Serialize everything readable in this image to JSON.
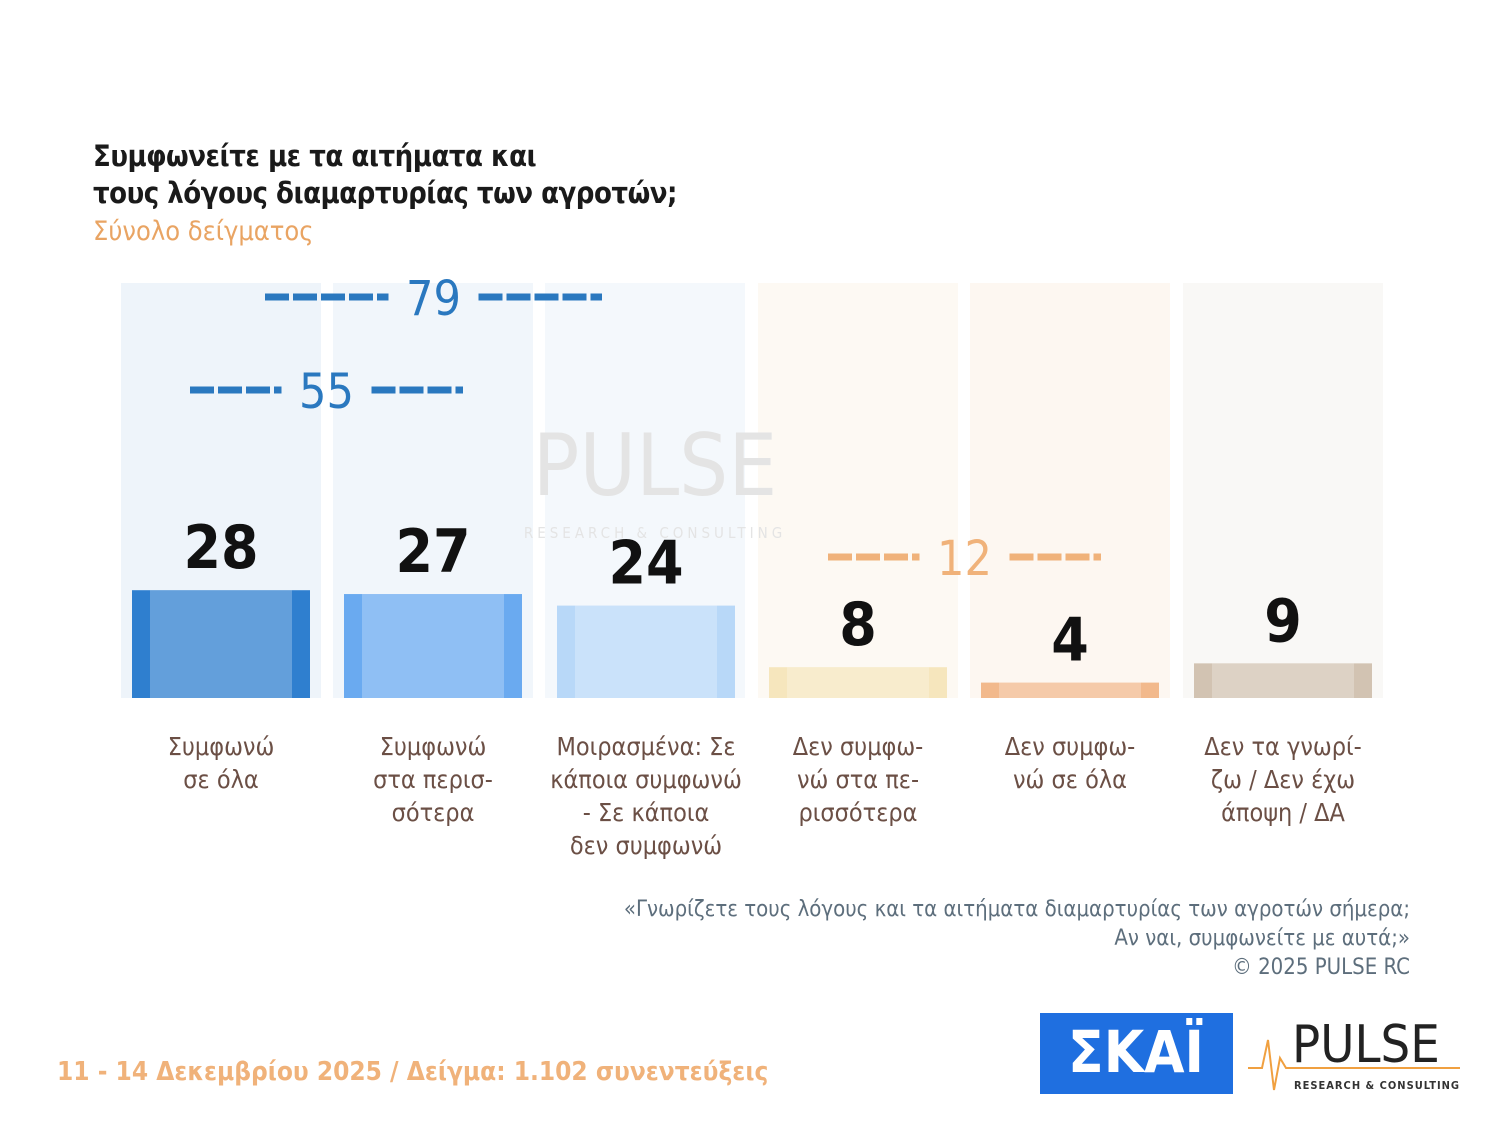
{
  "chart_data": {
    "type": "bar",
    "title": "Συμφωνείτε με τα αιτήματα και\nτους λόγους διαμαρτυρίας των αγροτών;",
    "subtitle": "Σύνολο δείγματος",
    "categories": [
      "Συμφωνώ\nσε όλα",
      "Συμφωνώ\nστα περισ-\nσότερα",
      "Μοιρασμένα: Σε\nκάποια συμφωνώ\n- Σε κάποια\nδεν συμφωνώ",
      "Δεν συμφω-\nνώ στα πε-\nρισσότερα",
      "Δεν συμφω-\nνώ σε όλα",
      "Δεν τα γνωρί-\nζω / Δεν έχω\nάποψη / ΔΑ"
    ],
    "values": [
      28,
      27,
      24,
      8,
      4,
      9
    ],
    "colors": [
      "#2f7fcf",
      "#6aaaf0",
      "#b8d8f8",
      "#f6e6bd",
      "#f2b98c",
      "#d2c3b2"
    ],
    "groups": [
      {
        "value": 79,
        "color": "#2a78bf"
      },
      {
        "value": 55,
        "color": "#2a78bf"
      },
      {
        "value": 12,
        "color": "#f0b27a"
      }
    ],
    "watermark": [
      "PULSE",
      "RESEARCH & CONSULTING"
    ],
    "note": "«Γνωρίζετε τους λόγους και τα αιτήματα διαμαρτυρίας των αγροτών σήμερα;\nΑν ναι, συμφωνείτε με αυτά;»\n©  2025  PULSE RC",
    "footer": "11 - 14 Δεκεμβρίου 2025  /  Δείγμα:  1.102 συνεντεύξεις",
    "logos": [
      "ΣΚΑΪ",
      "PULSE",
      "RESEARCH & CONSULTING"
    ]
  }
}
